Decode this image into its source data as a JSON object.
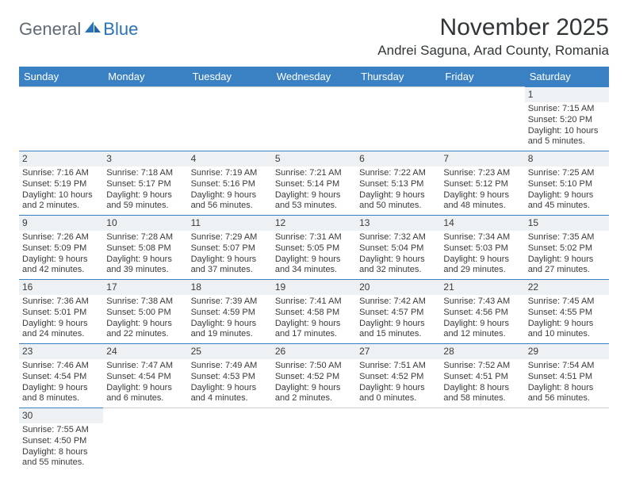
{
  "logo": {
    "text1": "General",
    "text2": "Blue",
    "color1": "#5f6b74",
    "color2": "#2b73b7"
  },
  "title": "November 2025",
  "location": "Andrei Saguna, Arad County, Romania",
  "colors": {
    "header_bg": "#3a81c4",
    "header_text": "#ffffff",
    "daynum_bg": "#eef1f3",
    "row_border": "#3a81c4",
    "text": "#3a3a3a"
  },
  "weekdays": [
    "Sunday",
    "Monday",
    "Tuesday",
    "Wednesday",
    "Thursday",
    "Friday",
    "Saturday"
  ],
  "weeks": [
    [
      null,
      null,
      null,
      null,
      null,
      null,
      {
        "n": "1",
        "sr": "Sunrise: 7:15 AM",
        "ss": "Sunset: 5:20 PM",
        "d1": "Daylight: 10 hours",
        "d2": "and 5 minutes."
      }
    ],
    [
      {
        "n": "2",
        "sr": "Sunrise: 7:16 AM",
        "ss": "Sunset: 5:19 PM",
        "d1": "Daylight: 10 hours",
        "d2": "and 2 minutes."
      },
      {
        "n": "3",
        "sr": "Sunrise: 7:18 AM",
        "ss": "Sunset: 5:17 PM",
        "d1": "Daylight: 9 hours",
        "d2": "and 59 minutes."
      },
      {
        "n": "4",
        "sr": "Sunrise: 7:19 AM",
        "ss": "Sunset: 5:16 PM",
        "d1": "Daylight: 9 hours",
        "d2": "and 56 minutes."
      },
      {
        "n": "5",
        "sr": "Sunrise: 7:21 AM",
        "ss": "Sunset: 5:14 PM",
        "d1": "Daylight: 9 hours",
        "d2": "and 53 minutes."
      },
      {
        "n": "6",
        "sr": "Sunrise: 7:22 AM",
        "ss": "Sunset: 5:13 PM",
        "d1": "Daylight: 9 hours",
        "d2": "and 50 minutes."
      },
      {
        "n": "7",
        "sr": "Sunrise: 7:23 AM",
        "ss": "Sunset: 5:12 PM",
        "d1": "Daylight: 9 hours",
        "d2": "and 48 minutes."
      },
      {
        "n": "8",
        "sr": "Sunrise: 7:25 AM",
        "ss": "Sunset: 5:10 PM",
        "d1": "Daylight: 9 hours",
        "d2": "and 45 minutes."
      }
    ],
    [
      {
        "n": "9",
        "sr": "Sunrise: 7:26 AM",
        "ss": "Sunset: 5:09 PM",
        "d1": "Daylight: 9 hours",
        "d2": "and 42 minutes."
      },
      {
        "n": "10",
        "sr": "Sunrise: 7:28 AM",
        "ss": "Sunset: 5:08 PM",
        "d1": "Daylight: 9 hours",
        "d2": "and 39 minutes."
      },
      {
        "n": "11",
        "sr": "Sunrise: 7:29 AM",
        "ss": "Sunset: 5:07 PM",
        "d1": "Daylight: 9 hours",
        "d2": "and 37 minutes."
      },
      {
        "n": "12",
        "sr": "Sunrise: 7:31 AM",
        "ss": "Sunset: 5:05 PM",
        "d1": "Daylight: 9 hours",
        "d2": "and 34 minutes."
      },
      {
        "n": "13",
        "sr": "Sunrise: 7:32 AM",
        "ss": "Sunset: 5:04 PM",
        "d1": "Daylight: 9 hours",
        "d2": "and 32 minutes."
      },
      {
        "n": "14",
        "sr": "Sunrise: 7:34 AM",
        "ss": "Sunset: 5:03 PM",
        "d1": "Daylight: 9 hours",
        "d2": "and 29 minutes."
      },
      {
        "n": "15",
        "sr": "Sunrise: 7:35 AM",
        "ss": "Sunset: 5:02 PM",
        "d1": "Daylight: 9 hours",
        "d2": "and 27 minutes."
      }
    ],
    [
      {
        "n": "16",
        "sr": "Sunrise: 7:36 AM",
        "ss": "Sunset: 5:01 PM",
        "d1": "Daylight: 9 hours",
        "d2": "and 24 minutes."
      },
      {
        "n": "17",
        "sr": "Sunrise: 7:38 AM",
        "ss": "Sunset: 5:00 PM",
        "d1": "Daylight: 9 hours",
        "d2": "and 22 minutes."
      },
      {
        "n": "18",
        "sr": "Sunrise: 7:39 AM",
        "ss": "Sunset: 4:59 PM",
        "d1": "Daylight: 9 hours",
        "d2": "and 19 minutes."
      },
      {
        "n": "19",
        "sr": "Sunrise: 7:41 AM",
        "ss": "Sunset: 4:58 PM",
        "d1": "Daylight: 9 hours",
        "d2": "and 17 minutes."
      },
      {
        "n": "20",
        "sr": "Sunrise: 7:42 AM",
        "ss": "Sunset: 4:57 PM",
        "d1": "Daylight: 9 hours",
        "d2": "and 15 minutes."
      },
      {
        "n": "21",
        "sr": "Sunrise: 7:43 AM",
        "ss": "Sunset: 4:56 PM",
        "d1": "Daylight: 9 hours",
        "d2": "and 12 minutes."
      },
      {
        "n": "22",
        "sr": "Sunrise: 7:45 AM",
        "ss": "Sunset: 4:55 PM",
        "d1": "Daylight: 9 hours",
        "d2": "and 10 minutes."
      }
    ],
    [
      {
        "n": "23",
        "sr": "Sunrise: 7:46 AM",
        "ss": "Sunset: 4:54 PM",
        "d1": "Daylight: 9 hours",
        "d2": "and 8 minutes."
      },
      {
        "n": "24",
        "sr": "Sunrise: 7:47 AM",
        "ss": "Sunset: 4:54 PM",
        "d1": "Daylight: 9 hours",
        "d2": "and 6 minutes."
      },
      {
        "n": "25",
        "sr": "Sunrise: 7:49 AM",
        "ss": "Sunset: 4:53 PM",
        "d1": "Daylight: 9 hours",
        "d2": "and 4 minutes."
      },
      {
        "n": "26",
        "sr": "Sunrise: 7:50 AM",
        "ss": "Sunset: 4:52 PM",
        "d1": "Daylight: 9 hours",
        "d2": "and 2 minutes."
      },
      {
        "n": "27",
        "sr": "Sunrise: 7:51 AM",
        "ss": "Sunset: 4:52 PM",
        "d1": "Daylight: 9 hours",
        "d2": "and 0 minutes."
      },
      {
        "n": "28",
        "sr": "Sunrise: 7:52 AM",
        "ss": "Sunset: 4:51 PM",
        "d1": "Daylight: 8 hours",
        "d2": "and 58 minutes."
      },
      {
        "n": "29",
        "sr": "Sunrise: 7:54 AM",
        "ss": "Sunset: 4:51 PM",
        "d1": "Daylight: 8 hours",
        "d2": "and 56 minutes."
      }
    ],
    [
      {
        "n": "30",
        "sr": "Sunrise: 7:55 AM",
        "ss": "Sunset: 4:50 PM",
        "d1": "Daylight: 8 hours",
        "d2": "and 55 minutes."
      },
      null,
      null,
      null,
      null,
      null,
      null
    ]
  ]
}
